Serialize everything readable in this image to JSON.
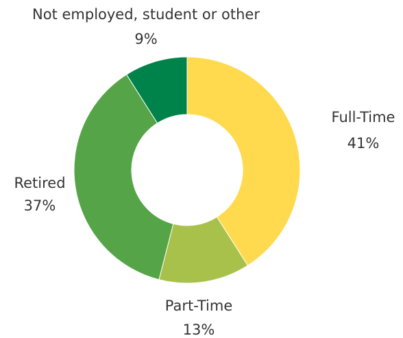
{
  "chart_data": {
    "type": "donut",
    "categories": [
      "Full-Time",
      "Part-Time",
      "Retired",
      "Not employed, student or other"
    ],
    "values": [
      41,
      13,
      37,
      9
    ],
    "value_labels": [
      "41%",
      "13%",
      "37%",
      "9%"
    ],
    "colors": [
      "#ffda4f",
      "#a8c14a",
      "#55a447",
      "#00834a"
    ]
  }
}
